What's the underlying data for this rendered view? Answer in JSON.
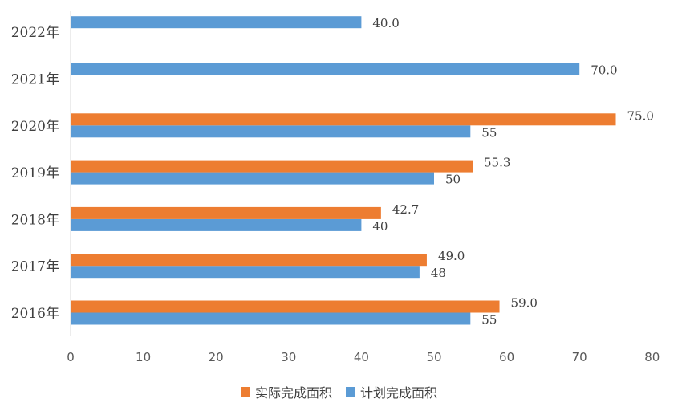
{
  "chart_data": {
    "type": "bar",
    "orientation": "horizontal",
    "categories": [
      "2016年",
      "2017年",
      "2018年",
      "2019年",
      "2020年",
      "2021年",
      "2022年"
    ],
    "series": [
      {
        "name": "实际完成面积",
        "color": "#ED7D31",
        "values": [
          59.0,
          49.0,
          42.7,
          55.3,
          75.0,
          null,
          null
        ],
        "labels": [
          "59.0",
          "49.0",
          "42.7",
          "55.3",
          "75.0",
          "",
          ""
        ]
      },
      {
        "name": "计划完成面积",
        "color": "#5B9BD5",
        "values": [
          55,
          48,
          40,
          50,
          55,
          70,
          40
        ],
        "labels": [
          "55",
          "48",
          "40",
          "50",
          "55",
          "70.0",
          "40.0"
        ]
      }
    ],
    "xlim": [
      0,
      80
    ],
    "xticks": [
      0,
      10,
      20,
      30,
      40,
      50,
      60,
      70,
      80
    ],
    "grid": false,
    "legend_position": "bottom"
  }
}
